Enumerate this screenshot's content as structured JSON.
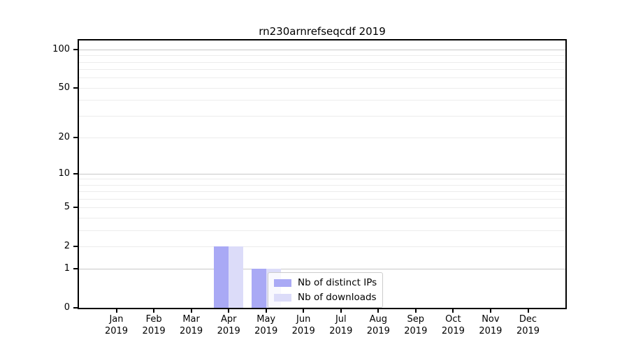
{
  "chart_data": {
    "type": "bar",
    "title": "rn230arnrefseqcdf 2019",
    "categories": [
      "Jan",
      "Feb",
      "Mar",
      "Apr",
      "May",
      "Jun",
      "Jul",
      "Aug",
      "Sep",
      "Oct",
      "Nov",
      "Dec"
    ],
    "year_label": "2019",
    "series": [
      {
        "name": "Nb of distinct IPs",
        "color": "#a9a9f5",
        "values": [
          0,
          0,
          0,
          2,
          1,
          0,
          0,
          0,
          0,
          0,
          0,
          0
        ]
      },
      {
        "name": "Nb of downloads",
        "color": "#dcdcf9",
        "values": [
          0,
          0,
          0,
          2,
          1,
          0,
          0,
          0,
          0,
          0,
          0,
          0
        ]
      }
    ],
    "yscale": "log1p",
    "ylim": [
      0,
      100
    ],
    "y_tick_values": [
      0,
      1,
      2,
      5,
      10,
      20,
      50,
      100
    ],
    "y_major_gridlines": [
      1,
      10,
      100
    ],
    "y_minor_gridlines": [
      2,
      3,
      4,
      5,
      6,
      7,
      8,
      9,
      20,
      30,
      40,
      50,
      60,
      70,
      80,
      90
    ],
    "grid": "horizontal",
    "legend": {
      "position": "inside-lower-center"
    },
    "colors": {
      "background": "#ffffff",
      "axis": "#000000",
      "major_grid": "#c8c8c8",
      "minor_grid": "#ececec",
      "bar_distinct_ips": "#a9a9f5",
      "bar_downloads": "#dcdcf9",
      "legend_border": "#cccccc"
    }
  }
}
